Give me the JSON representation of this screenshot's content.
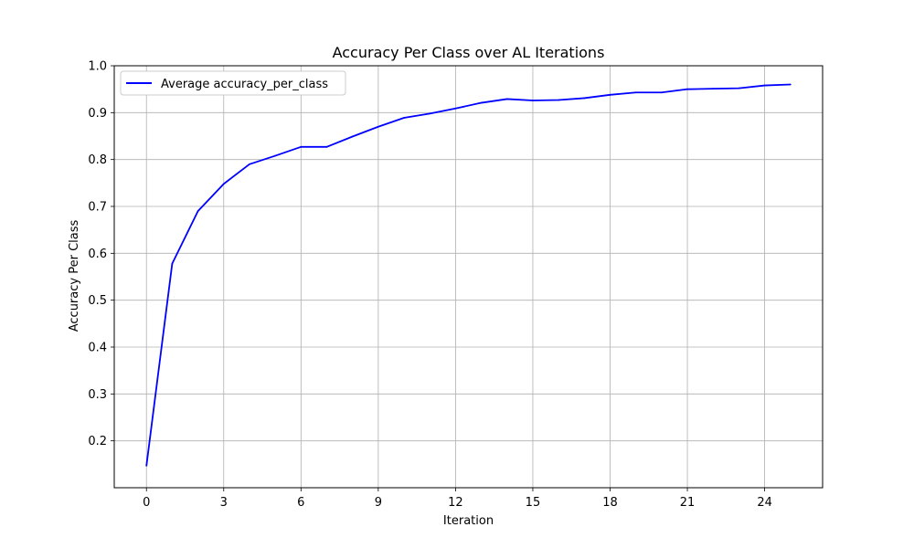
{
  "chart_data": {
    "type": "line",
    "title": "Accuracy Per Class over AL Iterations",
    "xlabel": "Iteration",
    "ylabel": "Accuracy Per Class",
    "xlim": [
      -1.25,
      26.25
    ],
    "ylim": [
      0.1,
      1.0
    ],
    "xticks": [
      0,
      3,
      6,
      9,
      12,
      15,
      18,
      21,
      24
    ],
    "yticks": [
      0.2,
      0.3,
      0.4,
      0.5,
      0.6,
      0.7,
      0.8,
      0.9,
      1.0
    ],
    "xtick_labels": [
      "0",
      "3",
      "6",
      "9",
      "12",
      "15",
      "18",
      "21",
      "24"
    ],
    "ytick_labels": [
      "0.2",
      "0.3",
      "0.4",
      "0.5",
      "0.6",
      "0.7",
      "0.8",
      "0.9",
      "1.0"
    ],
    "grid": true,
    "legend_position": "top-left",
    "series": [
      {
        "name": "Average accuracy_per_class",
        "color": "#0000ff",
        "x": [
          0,
          1,
          2,
          3,
          4,
          5,
          6,
          7,
          8,
          9,
          10,
          11,
          12,
          13,
          14,
          15,
          16,
          17,
          18,
          19,
          20,
          21,
          22,
          23,
          24,
          25
        ],
        "y": [
          0.147,
          0.578,
          0.69,
          0.748,
          0.79,
          0.808,
          0.827,
          0.827,
          0.849,
          0.87,
          0.889,
          0.898,
          0.909,
          0.921,
          0.929,
          0.926,
          0.927,
          0.931,
          0.938,
          0.943,
          0.943,
          0.95,
          0.951,
          0.952,
          0.958,
          0.96
        ]
      }
    ]
  }
}
